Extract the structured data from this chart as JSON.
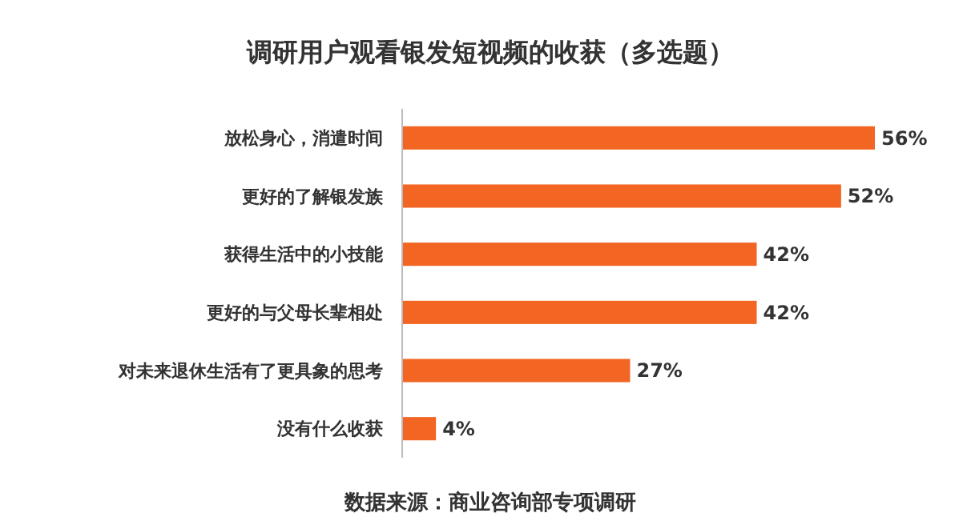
{
  "chart_data": {
    "type": "bar",
    "orientation": "horizontal",
    "title": "调研用户观看银发短视频的收获（多选题）",
    "categories": [
      "放松身心，消遣时间",
      "更好的了解银发族",
      "获得生活中的小技能",
      "更好的与父母长辈相处",
      "对未来退休生活有了更具象的思考",
      "没有什么收获"
    ],
    "values": [
      56,
      52,
      42,
      42,
      27,
      4
    ],
    "value_labels": [
      "56%",
      "52%",
      "42%",
      "42%",
      "27%",
      "4%"
    ],
    "color": "#f26522",
    "annotations": [
      "数据来源：商业咨询部专项调研"
    ]
  }
}
